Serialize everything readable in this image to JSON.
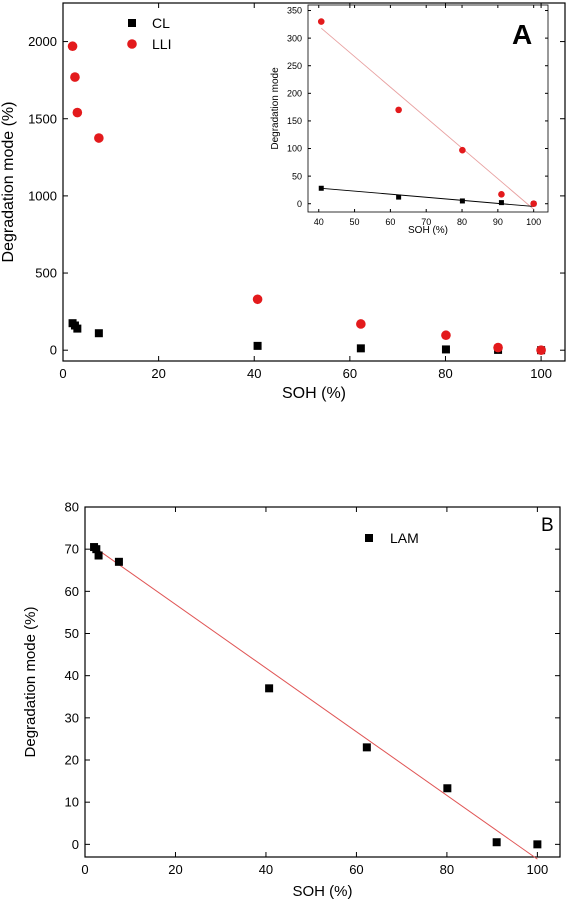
{
  "chart_data": [
    {
      "panel": "A",
      "type": "scatter",
      "panel_label": "A",
      "xlabel": "SOH (%)",
      "ylabel": "Degradation mode (%)",
      "xlim": [
        0,
        105
      ],
      "ylim": [
        -70,
        2250
      ],
      "xticks": [
        0,
        20,
        40,
        60,
        80,
        100
      ],
      "yticks": [
        0,
        500,
        1000,
        1500,
        2000
      ],
      "legend_position": "top-left",
      "series": [
        {
          "name": "CL",
          "marker": "square",
          "color": "#000000",
          "x": [
            2,
            2.5,
            3,
            7.5,
            40.7,
            62.3,
            80.1,
            91,
            100
          ],
          "y": [
            175,
            160,
            140,
            110,
            28,
            12,
            5,
            2,
            0
          ]
        },
        {
          "name": "LLI",
          "marker": "circle",
          "color": "#e31a1c",
          "x": [
            2,
            2.5,
            3,
            7.5,
            40.7,
            62.3,
            80.1,
            91,
            100
          ],
          "y": [
            1970,
            1770,
            1540,
            1375,
            330,
            170,
            97,
            17,
            0
          ]
        }
      ],
      "inset": {
        "type": "scatter",
        "xlabel": "SOH (%)",
        "ylabel": "Degradation mode",
        "xlim": [
          37,
          104
        ],
        "ylim": [
          -15,
          360
        ],
        "xticks": [
          40,
          50,
          60,
          70,
          80,
          90,
          100
        ],
        "yticks": [
          0,
          50,
          100,
          150,
          200,
          250,
          300,
          350
        ],
        "series": [
          {
            "name": "CL",
            "marker": "square",
            "color": "#000000",
            "x": [
              40.7,
              62.3,
              80.1,
              91,
              100
            ],
            "y": [
              28,
              12,
              5,
              2,
              0
            ]
          },
          {
            "name": "LLI",
            "marker": "circle",
            "color": "#e31a1c",
            "x": [
              40.7,
              62.3,
              80.1,
              91,
              100
            ],
            "y": [
              330,
              170,
              97,
              17,
              0
            ]
          }
        ],
        "fits": [
          {
            "color": "#e8a0a0",
            "x": [
              40.7,
              100
            ],
            "y": [
              318,
              -10
            ]
          },
          {
            "color": "#000000",
            "x": [
              40.7,
              100
            ],
            "y": [
              28,
              -5
            ]
          }
        ]
      }
    },
    {
      "panel": "B",
      "type": "scatter",
      "panel_label": "B",
      "xlabel": "SOH (%)",
      "ylabel": "Degradation mode (%)",
      "xlim": [
        0,
        105
      ],
      "ylim": [
        -3,
        80
      ],
      "xticks": [
        0,
        20,
        40,
        60,
        80,
        100
      ],
      "yticks": [
        0,
        10,
        20,
        30,
        40,
        50,
        60,
        70,
        80
      ],
      "legend_position": "top-right",
      "series": [
        {
          "name": "LAM",
          "marker": "square",
          "color": "#000000",
          "x": [
            2,
            2.5,
            3,
            7.5,
            40.7,
            62.3,
            80.1,
            91,
            100
          ],
          "y": [
            70.5,
            70,
            68.5,
            67,
            37,
            23,
            13.3,
            0.5,
            0
          ]
        }
      ],
      "fits": [
        {
          "color": "#e05555",
          "x": [
            2,
            100
          ],
          "y": [
            70.5,
            -3.5
          ]
        }
      ]
    }
  ]
}
